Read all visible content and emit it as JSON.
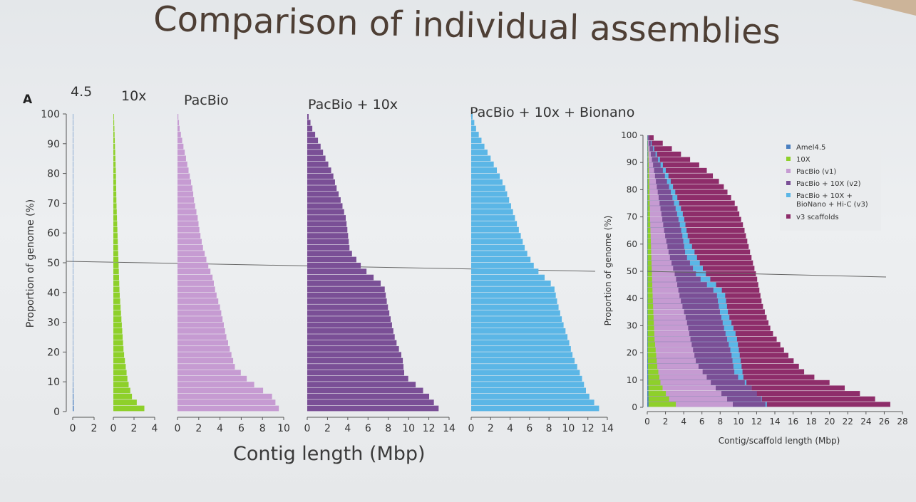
{
  "slide": {
    "title": "Comparison of individual assemblies",
    "panel_label": "A",
    "shared_xlabel": "Contig length (Mbp)"
  },
  "chart_data": [
    {
      "type": "bar",
      "title": "4.5",
      "ylabel": "Proportion of genome (%)",
      "xlabel": "",
      "ylim": [
        0,
        100
      ],
      "xlim": [
        0,
        2
      ],
      "xticks": [
        0,
        2
      ],
      "yticks": [
        0,
        10,
        20,
        30,
        40,
        50,
        60,
        70,
        80,
        90,
        100
      ],
      "color": "#4a7fc0",
      "reference_line": 50,
      "profile": [
        [
          0,
          0.1
        ],
        [
          10,
          0.05
        ],
        [
          30,
          0.03
        ],
        [
          50,
          0.02
        ],
        [
          80,
          0.015
        ],
        [
          100,
          0.01
        ]
      ]
    },
    {
      "type": "bar",
      "title": "10x",
      "xlim": [
        0,
        4
      ],
      "xticks": [
        0,
        2,
        4
      ],
      "ylim": [
        0,
        100
      ],
      "color": "#8ed02a",
      "reference_line": 50,
      "profile": [
        [
          0,
          3.5
        ],
        [
          2,
          2.5
        ],
        [
          5,
          1.8
        ],
        [
          10,
          1.4
        ],
        [
          20,
          1.0
        ],
        [
          30,
          0.8
        ],
        [
          40,
          0.6
        ],
        [
          50,
          0.5
        ],
        [
          60,
          0.4
        ],
        [
          70,
          0.3
        ],
        [
          80,
          0.25
        ],
        [
          90,
          0.15
        ],
        [
          100,
          0.05
        ]
      ]
    },
    {
      "type": "bar",
      "title": "PacBio",
      "xlim": [
        0,
        10
      ],
      "xticks": [
        0,
        2,
        4,
        6,
        8,
        10
      ],
      "ylim": [
        0,
        100
      ],
      "color": "#c69bd2",
      "reference_line": 50,
      "profile": [
        [
          0,
          9.7
        ],
        [
          5,
          8.9
        ],
        [
          10,
          6.8
        ],
        [
          15,
          5.4
        ],
        [
          20,
          5.0
        ],
        [
          25,
          4.6
        ],
        [
          30,
          4.3
        ],
        [
          35,
          4.0
        ],
        [
          40,
          3.6
        ],
        [
          45,
          3.3
        ],
        [
          50,
          2.8
        ],
        [
          55,
          2.4
        ],
        [
          60,
          2.1
        ],
        [
          65,
          1.9
        ],
        [
          70,
          1.6
        ],
        [
          75,
          1.4
        ],
        [
          80,
          1.1
        ],
        [
          85,
          0.8
        ],
        [
          90,
          0.5
        ],
        [
          95,
          0.2
        ],
        [
          100,
          0.05
        ]
      ]
    },
    {
      "type": "bar",
      "title": "PacBio + 10x",
      "xlim": [
        0,
        14
      ],
      "xticks": [
        0,
        2,
        4,
        6,
        8,
        10,
        12,
        14
      ],
      "ylim": [
        0,
        100
      ],
      "color": "#7a4f96",
      "reference_line": 50,
      "profile": [
        [
          0,
          13.2
        ],
        [
          6,
          11.8
        ],
        [
          12,
          9.6
        ],
        [
          18,
          9.4
        ],
        [
          24,
          8.7
        ],
        [
          30,
          8.3
        ],
        [
          36,
          7.9
        ],
        [
          42,
          7.6
        ],
        [
          48,
          5.5
        ],
        [
          54,
          4.2
        ],
        [
          60,
          4.0
        ],
        [
          65,
          3.8
        ],
        [
          70,
          3.4
        ],
        [
          75,
          2.9
        ],
        [
          80,
          2.5
        ],
        [
          85,
          1.8
        ],
        [
          90,
          1.2
        ],
        [
          95,
          0.5
        ],
        [
          100,
          0.05
        ]
      ]
    },
    {
      "type": "bar",
      "title": "PacBio + 10x + Bionano",
      "xlim": [
        0,
        14
      ],
      "xticks": [
        0,
        2,
        4,
        6,
        8,
        10,
        12,
        14
      ],
      "ylim": [
        0,
        100
      ],
      "color": "#5bb6e6",
      "reference_line": 50,
      "profile": [
        [
          0,
          13.4
        ],
        [
          6,
          11.9
        ],
        [
          12,
          11.3
        ],
        [
          18,
          10.5
        ],
        [
          24,
          10.0
        ],
        [
          30,
          9.4
        ],
        [
          36,
          8.9
        ],
        [
          42,
          8.5
        ],
        [
          48,
          6.6
        ],
        [
          54,
          5.6
        ],
        [
          60,
          5.0
        ],
        [
          65,
          4.5
        ],
        [
          70,
          4.0
        ],
        [
          75,
          3.5
        ],
        [
          80,
          2.8
        ],
        [
          85,
          2.0
        ],
        [
          90,
          1.2
        ],
        [
          95,
          0.5
        ],
        [
          100,
          0.05
        ]
      ]
    },
    {
      "type": "bar",
      "title": "",
      "ylabel": "Proportion of genome (%)",
      "xlabel": "Contig/scaffold length (Mbp)",
      "ylim": [
        0,
        100
      ],
      "xlim": [
        0,
        28
      ],
      "xticks": [
        0,
        2,
        4,
        6,
        8,
        10,
        12,
        14,
        16,
        18,
        20,
        22,
        24,
        26,
        28
      ],
      "yticks": [
        0,
        10,
        20,
        30,
        40,
        50,
        60,
        70,
        80,
        90,
        100
      ],
      "reference_line": 50,
      "legend_position": "top-right",
      "series": [
        {
          "name": "v3 scaffolds",
          "color": "#8e2d6a",
          "profile": [
            [
              0,
              27.5
            ],
            [
              12,
              17.5
            ],
            [
              20,
              15.2
            ],
            [
              28,
              13.6
            ],
            [
              38,
              12.6
            ],
            [
              48,
              12.0
            ],
            [
              58,
              11.2
            ],
            [
              66,
              10.6
            ],
            [
              74,
              9.8
            ],
            [
              82,
              8.2
            ],
            [
              88,
              6.2
            ],
            [
              94,
              3.2
            ],
            [
              100,
              0.2
            ]
          ]
        },
        {
          "name": "PacBio + 10X + BioNano + Hi-C (v3)",
          "color": "#5bb6e6",
          "profile": [
            [
              0,
              13.4
            ],
            [
              10,
              10.6
            ],
            [
              18,
              10.2
            ],
            [
              26,
              9.8
            ],
            [
              34,
              8.9
            ],
            [
              42,
              8.5
            ],
            [
              48,
              6.6
            ],
            [
              54,
              5.6
            ],
            [
              62,
              4.5
            ],
            [
              70,
              4.0
            ],
            [
              78,
              3.2
            ],
            [
              86,
              2.2
            ],
            [
              94,
              0.9
            ],
            [
              100,
              0.05
            ]
          ]
        },
        {
          "name": "PacBio + 10X (v2)",
          "color": "#7a4f96",
          "profile": [
            [
              0,
              13.2
            ],
            [
              6,
              11.8
            ],
            [
              12,
              9.6
            ],
            [
              20,
              9.2
            ],
            [
              28,
              8.5
            ],
            [
              36,
              7.9
            ],
            [
              42,
              7.6
            ],
            [
              48,
              5.5
            ],
            [
              56,
              4.2
            ],
            [
              64,
              3.8
            ],
            [
              72,
              3.2
            ],
            [
              80,
              2.5
            ],
            [
              88,
              1.6
            ],
            [
              96,
              0.5
            ],
            [
              100,
              0.05
            ]
          ]
        },
        {
          "name": "PacBio (v1)",
          "color": "#c69bd2",
          "profile": [
            [
              0,
              9.7
            ],
            [
              8,
              7.2
            ],
            [
              16,
              5.4
            ],
            [
              24,
              4.8
            ],
            [
              32,
              4.3
            ],
            [
              40,
              3.6
            ],
            [
              48,
              3.1
            ],
            [
              56,
              2.4
            ],
            [
              64,
              1.9
            ],
            [
              72,
              1.5
            ],
            [
              80,
              1.1
            ],
            [
              88,
              0.7
            ],
            [
              96,
              0.2
            ],
            [
              100,
              0.05
            ]
          ]
        },
        {
          "name": "10X",
          "color": "#8ed02a",
          "profile": [
            [
              0,
              3.5
            ],
            [
              3,
              2.4
            ],
            [
              8,
              1.5
            ],
            [
              15,
              1.1
            ],
            [
              25,
              0.8
            ],
            [
              40,
              0.6
            ],
            [
              55,
              0.45
            ],
            [
              70,
              0.3
            ],
            [
              85,
              0.2
            ],
            [
              100,
              0.05
            ]
          ]
        },
        {
          "name": "Amel4.5",
          "color": "#4a7fc0",
          "profile": [
            [
              0,
              0.15
            ],
            [
              20,
              0.06
            ],
            [
              50,
              0.03
            ],
            [
              100,
              0.01
            ]
          ]
        }
      ]
    }
  ]
}
